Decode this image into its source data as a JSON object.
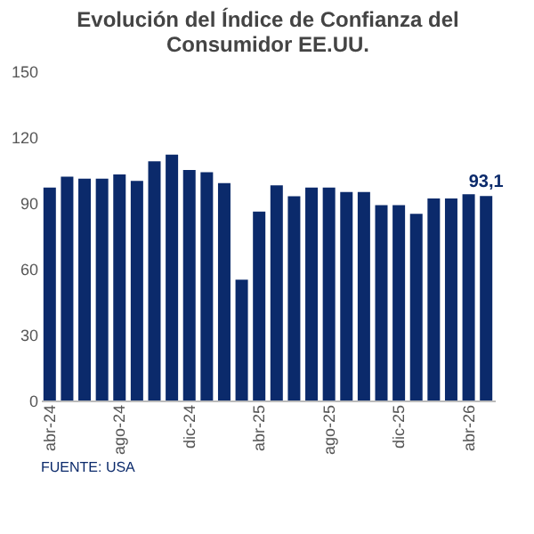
{
  "chart_data": {
    "type": "bar",
    "title": [
      "Evolución del Índice de Confianza del",
      "Consumidor EE.UU."
    ],
    "categories": [
      "abr-24",
      null,
      null,
      null,
      "ago-24",
      null,
      null,
      null,
      "dic-24",
      null,
      null,
      null,
      "abr-25",
      null,
      null,
      null,
      "ago-25",
      null,
      null,
      null,
      "dic-25",
      null,
      null,
      null,
      "abr-26",
      null
    ],
    "values": [
      97,
      102,
      101,
      101,
      103,
      100,
      109,
      112,
      105,
      104,
      99,
      55,
      86,
      98,
      93,
      97,
      97,
      95,
      95,
      89,
      89,
      85,
      92,
      92,
      94,
      93.1
    ],
    "value_labels": [
      null,
      null,
      null,
      null,
      null,
      null,
      null,
      null,
      null,
      null,
      null,
      null,
      null,
      null,
      null,
      null,
      null,
      null,
      null,
      null,
      null,
      null,
      null,
      null,
      null,
      "93,1"
    ],
    "color": "#0b2a6b",
    "ylim": [
      0,
      150
    ],
    "yticks": [
      0,
      30,
      60,
      90,
      120,
      150
    ],
    "grid": false,
    "annotations": [
      "FUENTE: USA"
    ]
  }
}
